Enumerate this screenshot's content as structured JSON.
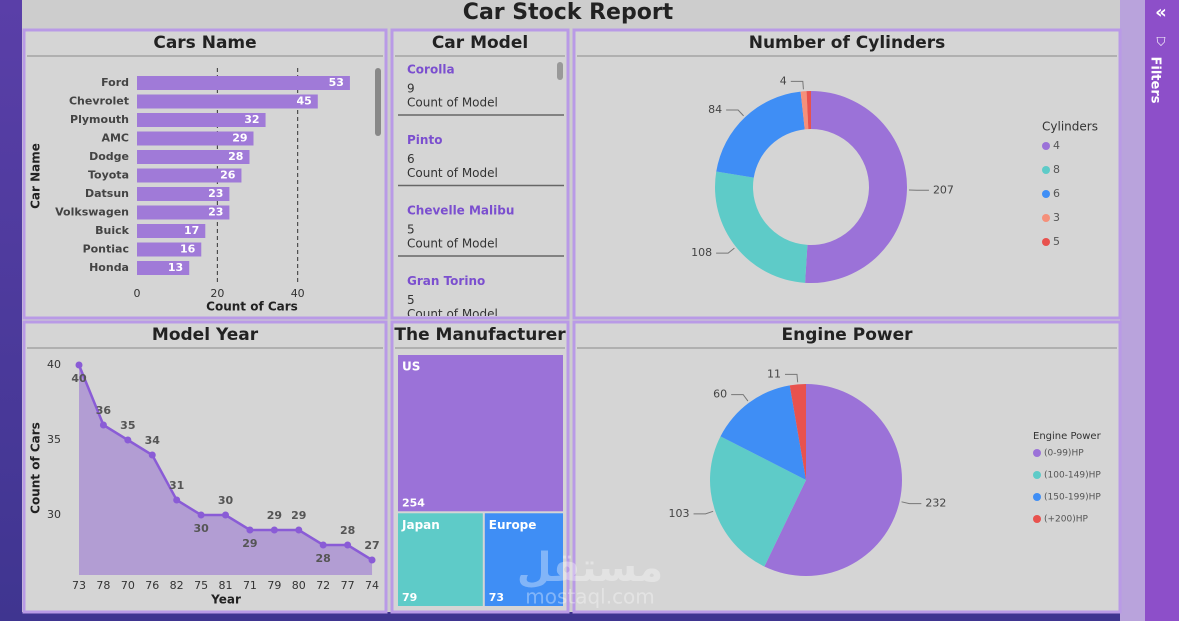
{
  "title": "Car Stock Report",
  "filters_label": "Filters",
  "watermark": {
    "arabic": "مستقل",
    "latin": "mostaql.com"
  },
  "chart_data": [
    {
      "type": "hbar",
      "title": "Cars Name",
      "categories": [
        "Ford",
        "Chevrolet",
        "Plymouth",
        "AMC",
        "Dodge",
        "Toyota",
        "Datsun",
        "Volkswagen",
        "Buick",
        "Pontiac",
        "Honda"
      ],
      "values": [
        53,
        45,
        32,
        29,
        28,
        26,
        23,
        23,
        17,
        16,
        13
      ],
      "color": "#a07ad8",
      "xlim": [
        0,
        58
      ],
      "xticks": [
        0,
        20,
        40
      ],
      "grid": true,
      "x_label": "Count of Cars",
      "y_label": "Car Name"
    },
    {
      "type": "card-list",
      "title": "Car Model",
      "categories": [
        "Corolla",
        "Pinto",
        "Chevelle Malibu",
        "Gran Torino"
      ],
      "values": [
        9,
        6,
        5,
        5
      ],
      "value_name": "Count of Model"
    },
    {
      "type": "donut",
      "title": "Number of Cylinders",
      "legend_title": "Cylinders",
      "categories": [
        "4",
        "8",
        "6",
        "3",
        "5"
      ],
      "values": [
        207,
        108,
        84,
        4,
        3
      ],
      "value_labels": [
        "207",
        "108",
        "84",
        "4",
        null
      ],
      "colors": [
        "#9b72d8",
        "#5ecbc8",
        "#3f8ef5",
        "#f5907a",
        "#e8524e"
      ]
    },
    {
      "type": "line",
      "title": "Model Year",
      "categories": [
        "73",
        "78",
        "70",
        "76",
        "82",
        "75",
        "81",
        "71",
        "79",
        "80",
        "72",
        "77",
        "74"
      ],
      "values": [
        40,
        36,
        35,
        34,
        31,
        30,
        30,
        29,
        29,
        29,
        28,
        28,
        27
      ],
      "ylim": [
        26,
        41
      ],
      "yticks": [
        30,
        35,
        40
      ],
      "color": "#8a5cd6",
      "x_label": "Year",
      "y_label": "Count of Cars"
    },
    {
      "type": "treemap",
      "title": "The Manufacturer",
      "categories": [
        "US",
        "Japan",
        "Europe"
      ],
      "values": [
        254,
        79,
        73
      ],
      "colors": [
        "#9b72d8",
        "#5ecbc8",
        "#3f8ef5"
      ]
    },
    {
      "type": "pie",
      "title": "Engine Power",
      "legend_title": "Engine Power",
      "categories": [
        "(0-99)HP",
        "(100-149)HP",
        "(150-199)HP",
        "(+200)HP"
      ],
      "values": [
        232,
        103,
        60,
        11
      ],
      "colors": [
        "#9b72d8",
        "#5ecbc8",
        "#3f8ef5",
        "#e8524e"
      ]
    }
  ]
}
